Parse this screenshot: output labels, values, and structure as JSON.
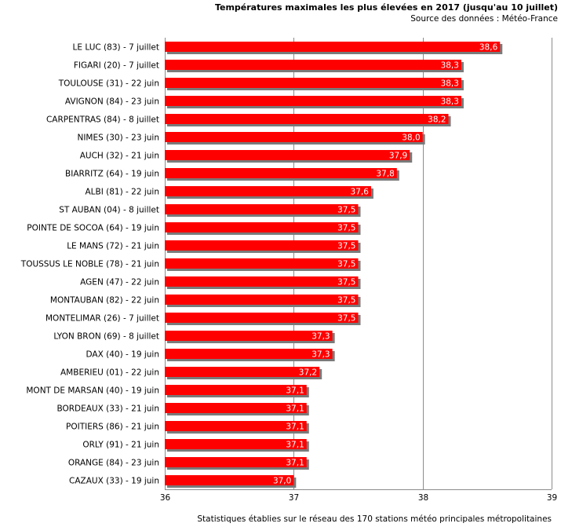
{
  "chart_data": {
    "type": "bar",
    "orientation": "horizontal",
    "title": "Températures maximales les plus élevées en 2017 (jusqu'au 10 juillet)",
    "subtitle": "Source des données : Météo-France",
    "footnote": "Statistiques établies sur le réseau des 170 stations météo principales métropolitaines",
    "xlabel": "",
    "ylabel": "",
    "xlim": [
      36,
      39
    ],
    "xticks": [
      "36",
      "37",
      "38",
      "39"
    ],
    "grid": true,
    "legend": "none",
    "bar_color": "#ff0000",
    "bar_shadow_color": "#7a7a7a",
    "categories": [
      "LE LUC (83) - 7 juillet",
      "FIGARI (20) - 7 juillet",
      "TOULOUSE (31) - 22 juin",
      "AVIGNON (84) - 23 juin",
      "CARPENTRAS (84) - 8 juillet",
      "NIMES (30) - 23 juin",
      "AUCH (32) - 21 juin",
      "BIARRITZ (64) - 19 juin",
      "ALBI (81) - 22 juin",
      "ST AUBAN (04) - 8 juillet",
      "POINTE DE SOCOA (64) - 19 juin",
      "LE MANS (72) - 21 juin",
      "TOUSSUS LE NOBLE (78) - 21 juin",
      "AGEN (47) - 22 juin",
      "MONTAUBAN (82) - 22 juin",
      "MONTELIMAR (26) - 7 juillet",
      "LYON BRON (69) - 8 juillet",
      "DAX (40) - 19 juin",
      "AMBERIEU (01) - 22 juin",
      "MONT DE MARSAN (40) - 19 juin",
      "BORDEAUX (33) - 21 juin",
      "POITIERS (86) - 21 juin",
      "ORLY (91) - 21 juin",
      "ORANGE (84) - 23 juin",
      "CAZAUX (33) - 19 juin"
    ],
    "values": [
      38.6,
      38.3,
      38.3,
      38.3,
      38.2,
      38.0,
      37.9,
      37.8,
      37.6,
      37.5,
      37.5,
      37.5,
      37.5,
      37.5,
      37.5,
      37.5,
      37.3,
      37.3,
      37.2,
      37.1,
      37.1,
      37.1,
      37.1,
      37.1,
      37.0
    ],
    "value_labels": [
      "38,6",
      "38,3",
      "38,3",
      "38,3",
      "38,2",
      "38,0",
      "37,9",
      "37,8",
      "37,6",
      "37,5",
      "37,5",
      "37,5",
      "37,5",
      "37,5",
      "37,5",
      "37,5",
      "37,3",
      "37,3",
      "37,2",
      "37,1",
      "37,1",
      "37,1",
      "37,1",
      "37,1",
      "37,0"
    ]
  }
}
